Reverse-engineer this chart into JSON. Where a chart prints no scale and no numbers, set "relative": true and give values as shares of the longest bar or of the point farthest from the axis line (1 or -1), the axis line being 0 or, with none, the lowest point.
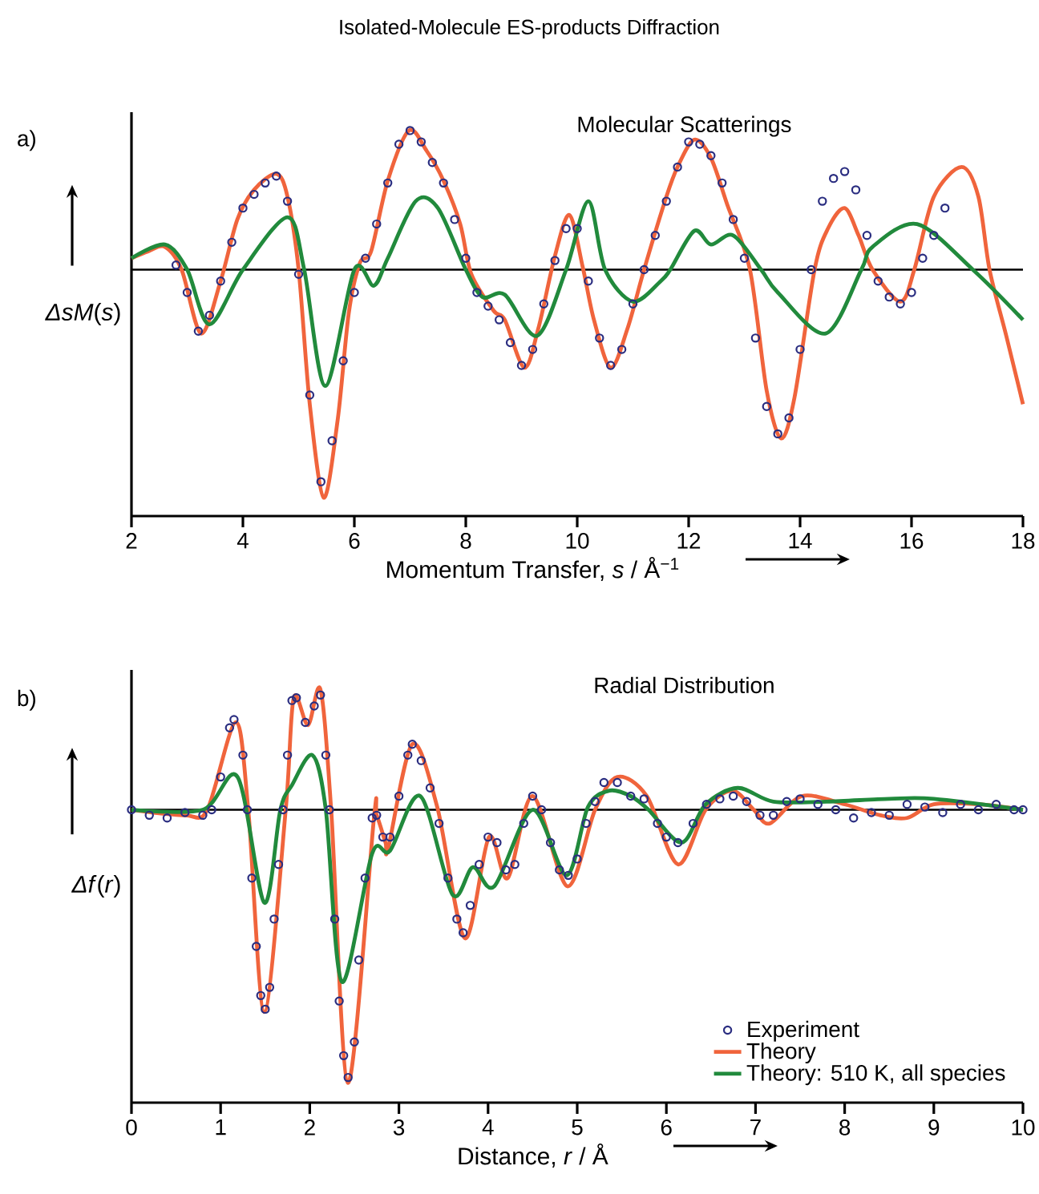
{
  "chart_data": [
    {
      "type": "line",
      "relative": true,
      "title": "Isolated-Molecule ES-products Diffraction",
      "xlabel": "Momentum Transfer, *s* / Å$^{−1}$",
      "ylabel": "*ΔsM*(*s*)",
      "annotations": [
        "a)",
        "Molecular Scatterings"
      ],
      "xlim": [
        2,
        18
      ],
      "xticks": [
        2,
        4,
        6,
        8,
        10,
        12,
        14,
        16,
        18
      ],
      "series": [
        {
          "type": "scatter",
          "marker": "circle",
          "color": "#2a2d80",
          "x": [
            2.8,
            3.0,
            3.2,
            3.4,
            3.6,
            3.8,
            4.0,
            4.2,
            4.4,
            4.6,
            4.8,
            5.0,
            5.2,
            5.4,
            5.6,
            5.8,
            6.0,
            6.2,
            6.4,
            6.6,
            6.8,
            7.0,
            7.2,
            7.4,
            7.6,
            7.8,
            8.0,
            8.2,
            8.4,
            8.6,
            8.8,
            9.0,
            9.2,
            9.4,
            9.6,
            9.8,
            10.0,
            10.2,
            10.4,
            10.6,
            10.8,
            11.0,
            11.2,
            11.4,
            11.6,
            11.8,
            12.0,
            12.2,
            12.4,
            12.6,
            12.8,
            13.0,
            13.2,
            13.4,
            13.6,
            13.8,
            14.0,
            14.2,
            14.4,
            14.6,
            14.8,
            15.0,
            15.2,
            15.4,
            15.6,
            15.8,
            16.0,
            16.2,
            16.4,
            16.6
          ],
          "values": [
            0.02,
            -0.1,
            -0.27,
            -0.2,
            -0.05,
            0.12,
            0.27,
            0.33,
            0.38,
            0.41,
            0.3,
            -0.02,
            -0.55,
            -0.93,
            -0.75,
            -0.4,
            -0.1,
            0.05,
            0.2,
            0.38,
            0.55,
            0.61,
            0.56,
            0.47,
            0.38,
            0.22,
            0.05,
            -0.1,
            -0.16,
            -0.22,
            -0.32,
            -0.42,
            -0.35,
            -0.15,
            0.04,
            0.18,
            0.18,
            -0.05,
            -0.3,
            -0.42,
            -0.35,
            -0.15,
            0.0,
            0.15,
            0.3,
            0.45,
            0.56,
            0.55,
            0.5,
            0.38,
            0.22,
            0.05,
            -0.3,
            -0.6,
            -0.72,
            -0.65,
            -0.35,
            0.0,
            0.3,
            0.4,
            0.43,
            0.35,
            0.15,
            -0.05,
            -0.12,
            -0.15,
            -0.1,
            0.05,
            0.15,
            0.27
          ]
        },
        {
          "color": "#f0643c",
          "x": [
            2.0,
            2.3,
            2.6,
            2.9,
            3.25,
            3.6,
            3.9,
            4.2,
            4.6,
            4.8,
            5.0,
            5.2,
            5.45,
            5.7,
            5.9,
            6.1,
            6.3,
            6.6,
            6.98,
            7.3,
            7.6,
            7.9,
            8.1,
            8.5,
            8.7,
            9.05,
            9.3,
            9.6,
            9.86,
            10.1,
            10.3,
            10.6,
            10.9,
            11.2,
            11.6,
            11.8,
            12.1,
            12.4,
            12.7,
            13.1,
            13.4,
            13.66,
            13.9,
            14.26,
            14.5,
            14.8,
            15.05,
            15.3,
            15.8,
            16.05,
            16.4,
            16.9,
            17.2,
            17.4,
            17.7,
            18.0
          ],
          "values": [
            0.05,
            0.08,
            0.1,
            0.0,
            -0.28,
            -0.05,
            0.22,
            0.35,
            0.42,
            0.32,
            0.0,
            -0.59,
            -1.0,
            -0.66,
            -0.19,
            0.03,
            0.08,
            0.39,
            0.61,
            0.52,
            0.39,
            0.2,
            -0.02,
            -0.18,
            -0.22,
            -0.43,
            -0.26,
            0.06,
            0.24,
            0.01,
            -0.22,
            -0.43,
            -0.26,
            0.0,
            0.32,
            0.45,
            0.57,
            0.49,
            0.28,
            0.0,
            -0.53,
            -0.74,
            -0.56,
            0.0,
            0.18,
            0.27,
            0.15,
            0.0,
            -0.14,
            0.0,
            0.32,
            0.45,
            0.32,
            0.0,
            -0.29,
            -0.59
          ]
        },
        {
          "color": "#218a3c",
          "x": [
            2.0,
            2.6,
            3.0,
            3.4,
            4.0,
            4.8,
            5.1,
            5.48,
            6.0,
            6.35,
            6.6,
            7.1,
            7.5,
            8.0,
            8.3,
            8.7,
            9.28,
            9.8,
            10.2,
            10.5,
            11.0,
            11.5,
            11.67,
            12.1,
            12.4,
            12.8,
            13.3,
            13.6,
            14.46,
            15.1,
            15.3,
            16.1,
            17.1,
            18.0
          ],
          "values": [
            0.05,
            0.11,
            0.0,
            -0.24,
            0.0,
            0.23,
            0.0,
            -0.51,
            0.0,
            -0.07,
            0.05,
            0.3,
            0.27,
            0.0,
            -0.12,
            -0.11,
            -0.29,
            0.0,
            0.3,
            0.0,
            -0.14,
            -0.05,
            0.0,
            0.17,
            0.11,
            0.15,
            0.0,
            -0.1,
            -0.28,
            0.0,
            0.1,
            0.2,
            0.0,
            -0.22
          ]
        }
      ]
    },
    {
      "type": "line",
      "relative": true,
      "legend": "bottom right",
      "xlabel": "Distance, *r* / Å",
      "ylabel": "*Δf*(*r*)",
      "annotations": [
        "b)",
        "Radial Distribution"
      ],
      "xlim": [
        0,
        10
      ],
      "xticks": [
        0,
        1,
        2,
        3,
        4,
        5,
        6,
        7,
        8,
        9,
        10
      ],
      "series": [
        {
          "type": "scatter",
          "marker": "circle",
          "name": "Experiment",
          "color": "#2a2d80",
          "x": [
            0,
            0.2,
            0.4,
            0.6,
            0.8,
            0.9,
            1.0,
            1.1,
            1.15,
            1.25,
            1.3,
            1.35,
            1.4,
            1.45,
            1.5,
            1.55,
            1.6,
            1.65,
            1.7,
            1.75,
            1.8,
            1.85,
            1.95,
            2.05,
            2.12,
            2.18,
            2.22,
            2.28,
            2.33,
            2.38,
            2.43,
            2.5,
            2.55,
            2.62,
            2.7,
            2.75,
            2.82,
            2.9,
            3.0,
            3.1,
            3.15,
            3.25,
            3.35,
            3.45,
            3.55,
            3.65,
            3.72,
            3.8,
            3.9,
            4.0,
            4.1,
            4.2,
            4.3,
            4.4,
            4.5,
            4.6,
            4.7,
            4.8,
            4.9,
            5.0,
            5.1,
            5.2,
            5.3,
            5.45,
            5.6,
            5.75,
            5.9,
            6.0,
            6.13,
            6.3,
            6.45,
            6.6,
            6.75,
            6.9,
            7.05,
            7.2,
            7.35,
            7.5,
            7.7,
            7.9,
            8.1,
            8.3,
            8.5,
            8.7,
            8.9,
            9.1,
            9.3,
            9.5,
            9.7,
            9.9,
            10.0
          ],
          "values": [
            0.0,
            -0.02,
            -0.03,
            -0.01,
            -0.02,
            0.0,
            0.12,
            0.3,
            0.33,
            0.2,
            0.0,
            -0.25,
            -0.5,
            -0.68,
            -0.73,
            -0.65,
            -0.4,
            -0.2,
            0.0,
            0.2,
            0.4,
            0.41,
            0.32,
            0.38,
            0.42,
            0.2,
            0.0,
            -0.4,
            -0.7,
            -0.9,
            -0.98,
            -0.85,
            -0.55,
            -0.25,
            -0.03,
            -0.02,
            -0.1,
            -0.1,
            0.05,
            0.2,
            0.24,
            0.18,
            0.08,
            -0.05,
            -0.25,
            -0.4,
            -0.45,
            -0.35,
            -0.2,
            -0.1,
            -0.12,
            -0.22,
            -0.2,
            -0.05,
            0.05,
            0.0,
            -0.12,
            -0.22,
            -0.24,
            -0.18,
            -0.05,
            0.03,
            0.1,
            0.1,
            0.05,
            0.04,
            -0.05,
            -0.1,
            -0.12,
            -0.05,
            0.02,
            0.04,
            0.05,
            0.03,
            -0.02,
            -0.02,
            0.03,
            0.04,
            0.02,
            0.0,
            -0.03,
            -0.01,
            -0.02,
            0.02,
            0.01,
            -0.01,
            0.02,
            0.0,
            0.02,
            0.0,
            0.0
          ]
        },
        {
          "name": "Theory",
          "color": "#f0643c",
          "x": [
            0,
            0.6,
            0.85,
            1.17,
            1.31,
            1.49,
            1.73,
            1.82,
            1.98,
            2.12,
            2.24,
            2.43,
            2.72,
            2.75,
            2.85,
            2.88,
            3.15,
            3.43,
            3.74,
            4.01,
            4.22,
            4.5,
            4.89,
            5.2,
            5.45,
            5.78,
            6.13,
            6.44,
            6.74,
            6.98,
            7.16,
            7.52,
            8.0,
            8.4,
            8.7,
            9.0,
            9.5,
            10.0
          ],
          "values": [
            0.0,
            -0.02,
            0.0,
            0.32,
            0.0,
            -0.74,
            0.0,
            0.41,
            0.31,
            0.44,
            0.0,
            -1.0,
            -0.03,
            -0.02,
            -0.12,
            -0.14,
            0.24,
            0.01,
            -0.47,
            -0.1,
            -0.25,
            0.05,
            -0.28,
            0.0,
            0.12,
            0.05,
            -0.2,
            0.0,
            0.07,
            0.0,
            -0.05,
            0.05,
            0.02,
            -0.02,
            -0.03,
            0.02,
            0.02,
            0.0
          ]
        },
        {
          "name": "Theory: 510 K, all species",
          "color": "#218a3c",
          "x": [
            0,
            0.8,
            1.19,
            1.49,
            1.67,
            1.8,
            2.03,
            2.18,
            2.36,
            2.7,
            2.9,
            3.24,
            3.6,
            3.83,
            4.07,
            4.5,
            4.88,
            5.12,
            5.36,
            5.6,
            5.8,
            6.17,
            6.44,
            6.8,
            7.2,
            7.8,
            8.5,
            9.0,
            10.0
          ],
          "values": [
            0.0,
            0.0,
            0.12,
            -0.34,
            0.0,
            0.09,
            0.2,
            0.0,
            -0.63,
            -0.16,
            -0.15,
            0.05,
            -0.31,
            -0.21,
            -0.28,
            0.0,
            -0.24,
            0.01,
            0.07,
            0.05,
            0.0,
            -0.12,
            0.02,
            0.08,
            0.03,
            0.03,
            0.04,
            0.04,
            0.0
          ]
        }
      ]
    }
  ]
}
